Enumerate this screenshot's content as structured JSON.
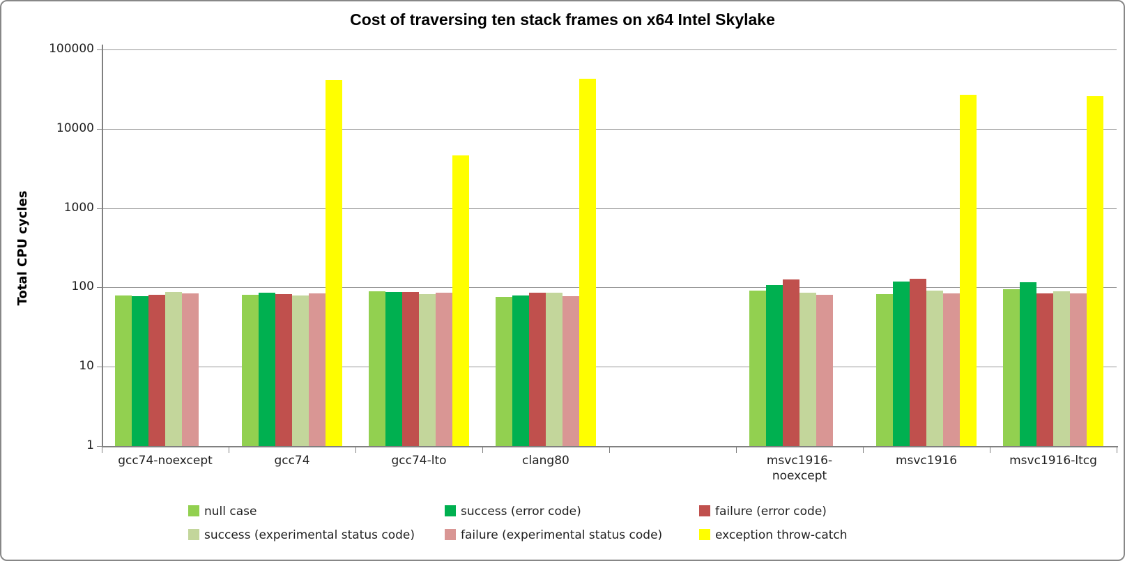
{
  "title": "Cost of traversing ten stack frames on x64 Intel Skylake",
  "chart_data": {
    "type": "bar",
    "scale": "log",
    "title": "Cost of traversing ten stack frames on x64 Intel Skylake",
    "xlabel": "",
    "ylabel": "Total CPU cycles",
    "ylim": [
      1,
      100000
    ],
    "yticks": [
      1,
      10,
      100,
      1000,
      10000,
      100000
    ],
    "ytick_labels": [
      "1",
      "10",
      "100",
      "1000",
      "10000",
      "100000"
    ],
    "grid": true,
    "legend_position": "bottom",
    "gridline_color": "#969696",
    "categories": [
      "gcc74-noexcept",
      "gcc74",
      "gcc74-lto",
      "clang80",
      "",
      "msvc1916-noexcept",
      "msvc1916",
      "msvc1916-ltcg"
    ],
    "series": [
      {
        "name": "null case",
        "color": "#92D050",
        "values": [
          79,
          81,
          89,
          76,
          null,
          92,
          82,
          95
        ]
      },
      {
        "name": "success (error code)",
        "color": "#00B050",
        "values": [
          78,
          86,
          88,
          79,
          null,
          108,
          118,
          116
        ]
      },
      {
        "name": "failure (error code)",
        "color": "#C0504D",
        "values": [
          81,
          82,
          87,
          86,
          null,
          127,
          128,
          84
        ]
      },
      {
        "name": "success (experimental status code)",
        "color": "#C3D69B",
        "values": [
          88,
          79,
          83,
          85,
          null,
          85,
          92,
          90
        ]
      },
      {
        "name": "failure (experimental status code)",
        "color": "#D99694",
        "values": [
          84,
          84,
          85,
          78,
          null,
          81,
          84,
          84
        ]
      },
      {
        "name": "exception throw-catch",
        "color": "#FFFF00",
        "values": [
          null,
          41000,
          4600,
          43000,
          null,
          null,
          27000,
          26000
        ]
      }
    ]
  }
}
